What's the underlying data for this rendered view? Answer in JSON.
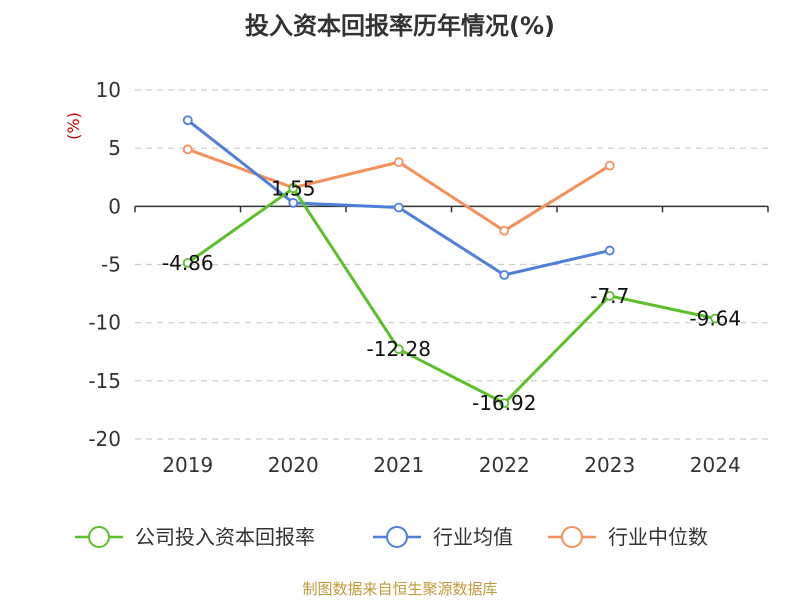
{
  "chart_data": {
    "type": "line",
    "title": "投入资本回报率历年情况(%)",
    "ylabel": "(%)",
    "xlabel": "",
    "categories": [
      "2019",
      "2020",
      "2021",
      "2022",
      "2023",
      "2024"
    ],
    "ylim": [
      -20,
      10
    ],
    "yticks": [
      10,
      5,
      0,
      -5,
      -10,
      -15,
      -20
    ],
    "grid": true,
    "legend_position": "bottom",
    "series": [
      {
        "name": "公司投入资本回报率",
        "color": "#5cc02a",
        "values": [
          -4.86,
          1.55,
          -12.28,
          -16.92,
          -7.7,
          -9.64
        ],
        "labels": [
          "-4.86",
          "1.55",
          "-12.28",
          "-16.92",
          "-7.7",
          "-9.64"
        ]
      },
      {
        "name": "行业均值",
        "color": "#4f7fd8",
        "values": [
          7.4,
          0.3,
          -0.1,
          -5.9,
          -3.8,
          null
        ]
      },
      {
        "name": "行业中位数",
        "color": "#f5905a",
        "values": [
          4.9,
          1.6,
          3.8,
          -2.1,
          3.5,
          null
        ]
      }
    ]
  },
  "footer": {
    "source": "制图数据来自恒生聚源数据库"
  }
}
